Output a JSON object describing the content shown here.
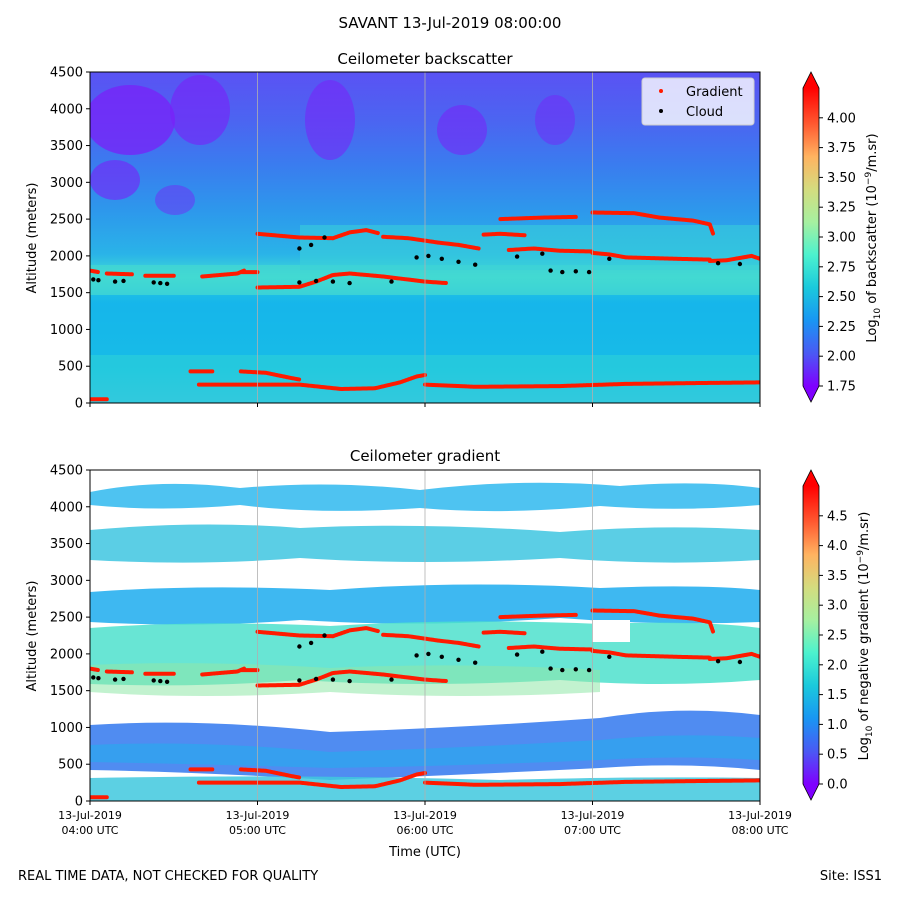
{
  "figure": {
    "title": "SAVANT 13-Jul-2019 08:00:00",
    "footer_left": "REAL TIME DATA, NOT CHECKED FOR QUALITY",
    "footer_right": "Site: ISS1"
  },
  "colors": {
    "gradient_marker": "#ff1a00",
    "cloud_marker": "#000000",
    "gridline": "#b0b0b0",
    "colormap": [
      "#7f00ff",
      "#4a59f4",
      "#1996f3",
      "#1ac9dc",
      "#4cf2ce",
      "#a6f0a0",
      "#d4dc7f",
      "#ffb360",
      "#ff5930",
      "#ff0000"
    ]
  },
  "chart_data": [
    {
      "type": "heatmap",
      "title": "Ceilometer backscatter",
      "xlabel": "",
      "ylabel": "Altitude (meters)",
      "ylim": [
        0,
        4500
      ],
      "xlim": [
        "13-Jul-2019 04:00 UTC",
        "13-Jul-2019 08:00 UTC"
      ],
      "y_ticks": [
        "0",
        "500",
        "1000",
        "1500",
        "2000",
        "2500",
        "3000",
        "3500",
        "4000",
        "4500"
      ],
      "grid": "vertical hourly lines",
      "legend": {
        "placement": "top-right",
        "entries": [
          {
            "label": "Gradient",
            "color": "#ff1a00"
          },
          {
            "label": "Cloud",
            "color": "#000000"
          }
        ]
      },
      "colorbar": {
        "label": "Log10 of backscatter (10^-9/m.sr)",
        "range": [
          1.75,
          4.25
        ],
        "ticks": [
          "1.75",
          "2.00",
          "2.25",
          "2.50",
          "2.75",
          "3.00",
          "3.25",
          "3.50",
          "3.75",
          "4.00"
        ],
        "extend": "both"
      },
      "series": [
        {
          "name": "Gradient",
          "segments": [
            [
              [
                0.0,
                50
              ],
              [
                0.1,
                50
              ]
            ],
            [
              [
                0.0,
                1800
              ],
              [
                0.05,
                1780
              ]
            ],
            [
              [
                0.1,
                1760
              ],
              [
                0.25,
                1750
              ]
            ],
            [
              [
                0.33,
                1730
              ],
              [
                0.5,
                1730
              ]
            ],
            [
              [
                0.67,
                1720
              ],
              [
                0.88,
                1760
              ],
              [
                0.92,
                1800
              ]
            ],
            [
              [
                0.9,
                1780
              ],
              [
                1.0,
                1780
              ]
            ],
            [
              [
                0.6,
                430
              ],
              [
                0.73,
                430
              ]
            ],
            [
              [
                0.9,
                430
              ],
              [
                1.05,
                410
              ],
              [
                1.2,
                340
              ],
              [
                1.25,
                320
              ]
            ],
            [
              [
                1.0,
                1570
              ],
              [
                1.25,
                1580
              ],
              [
                1.35,
                1650
              ],
              [
                1.45,
                1740
              ],
              [
                1.55,
                1760
              ],
              [
                1.75,
                1720
              ],
              [
                2.0,
                1650
              ],
              [
                2.13,
                1630
              ]
            ],
            [
              [
                1.0,
                2300
              ],
              [
                1.25,
                2250
              ],
              [
                1.45,
                2240
              ],
              [
                1.55,
                2320
              ],
              [
                1.65,
                2350
              ],
              [
                1.72,
                2310
              ]
            ],
            [
              [
                0.65,
                250
              ],
              [
                1.25,
                250
              ],
              [
                1.5,
                190
              ],
              [
                1.7,
                200
              ],
              [
                1.85,
                280
              ],
              [
                1.95,
                360
              ],
              [
                2.0,
                380
              ]
            ],
            [
              [
                1.75,
                2260
              ],
              [
                1.9,
                2240
              ],
              [
                2.08,
                2180
              ],
              [
                2.2,
                2150
              ],
              [
                2.32,
                2100
              ]
            ],
            [
              [
                2.0,
                250
              ],
              [
                2.3,
                220
              ],
              [
                2.8,
                230
              ],
              [
                3.2,
                260
              ],
              [
                3.6,
                270
              ],
              [
                4.0,
                280
              ]
            ],
            [
              [
                2.35,
                2290
              ],
              [
                2.45,
                2300
              ],
              [
                2.6,
                2280
              ]
            ],
            [
              [
                2.45,
                2500
              ],
              [
                2.7,
                2520
              ],
              [
                2.9,
                2530
              ]
            ],
            [
              [
                2.5,
                2080
              ],
              [
                2.65,
                2100
              ],
              [
                2.8,
                2070
              ],
              [
                3.0,
                2060
              ]
            ],
            [
              [
                3.0,
                2040
              ],
              [
                3.1,
                2020
              ],
              [
                3.2,
                1980
              ],
              [
                3.5,
                1960
              ],
              [
                3.7,
                1950
              ]
            ],
            [
              [
                3.0,
                2590
              ],
              [
                3.25,
                2580
              ],
              [
                3.4,
                2520
              ],
              [
                3.6,
                2480
              ],
              [
                3.7,
                2430
              ],
              [
                3.72,
                2300
              ]
            ],
            [
              [
                3.7,
                1930
              ],
              [
                3.8,
                1940
              ],
              [
                3.95,
                2000
              ],
              [
                4.0,
                1960
              ]
            ]
          ]
        },
        {
          "name": "Cloud",
          "points": [
            [
              0.02,
              1680
            ],
            [
              0.05,
              1670
            ],
            [
              0.15,
              1650
            ],
            [
              0.2,
              1660
            ],
            [
              0.38,
              1640
            ],
            [
              0.42,
              1630
            ],
            [
              0.46,
              1620
            ],
            [
              1.25,
              2100
            ],
            [
              1.32,
              2150
            ],
            [
              1.4,
              2250
            ],
            [
              1.25,
              1640
            ],
            [
              1.35,
              1660
            ],
            [
              1.45,
              1650
            ],
            [
              1.55,
              1630
            ],
            [
              1.8,
              1650
            ],
            [
              1.95,
              1980
            ],
            [
              2.02,
              2000
            ],
            [
              2.1,
              1960
            ],
            [
              2.2,
              1920
            ],
            [
              2.3,
              1880
            ],
            [
              2.55,
              1990
            ],
            [
              2.7,
              2030
            ],
            [
              2.75,
              1800
            ],
            [
              2.82,
              1780
            ],
            [
              2.9,
              1790
            ],
            [
              2.98,
              1780
            ],
            [
              3.1,
              1960
            ],
            [
              3.75,
              1900
            ],
            [
              3.88,
              1890
            ]
          ]
        }
      ]
    },
    {
      "type": "heatmap",
      "title": "Ceilometer gradient",
      "xlabel": "Time (UTC)",
      "ylabel": "Altitude (meters)",
      "ylim": [
        0,
        4500
      ],
      "xlim": [
        "13-Jul-2019 04:00 UTC",
        "13-Jul-2019 08:00 UTC"
      ],
      "x_ticks": [
        {
          "date": "13-Jul-2019",
          "time": "04:00 UTC"
        },
        {
          "date": "13-Jul-2019",
          "time": "05:00 UTC"
        },
        {
          "date": "13-Jul-2019",
          "time": "06:00 UTC"
        },
        {
          "date": "13-Jul-2019",
          "time": "07:00 UTC"
        },
        {
          "date": "13-Jul-2019",
          "time": "08:00 UTC"
        }
      ],
      "y_ticks": [
        "0",
        "500",
        "1000",
        "1500",
        "2000",
        "2500",
        "3000",
        "3500",
        "4000",
        "4500"
      ],
      "grid": "vertical hourly lines",
      "colorbar": {
        "label": "Log10 of negative gradient (10^-9/m.sr)",
        "range": [
          0.0,
          5.0
        ],
        "ticks": [
          "0.0",
          "0.5",
          "1.0",
          "1.5",
          "2.0",
          "2.5",
          "3.0",
          "3.5",
          "4.0",
          "4.5"
        ],
        "extend": "both"
      },
      "series": "same Gradient and Cloud markers as backscatter panel"
    }
  ]
}
